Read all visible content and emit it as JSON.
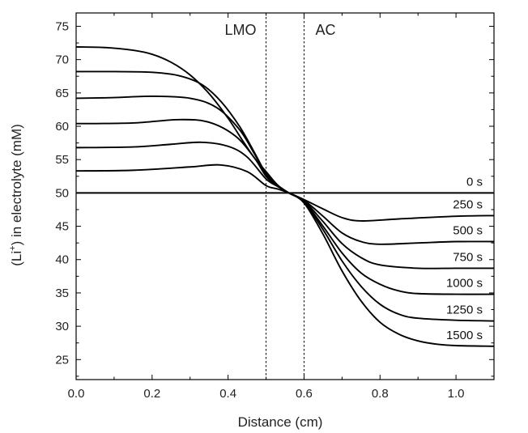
{
  "chart_data": {
    "type": "line",
    "title": "",
    "xlabel": "Distance (cm)",
    "ylabel_prefix": "(Li",
    "ylabel_sup": "+",
    "ylabel_suffix": ") in electrolyte (mM)",
    "xlim": [
      0.0,
      1.1
    ],
    "ylim": [
      22,
      77
    ],
    "xticks": [
      "0.0",
      "0.2",
      "0.4",
      "0.6",
      "0.8",
      "1.0"
    ],
    "yticks": [
      "25",
      "30",
      "35",
      "40",
      "45",
      "50",
      "55",
      "60",
      "65",
      "70",
      "75"
    ],
    "grid": false,
    "regions": [
      {
        "label": "LMO",
        "boundary_x": 0.5
      },
      {
        "label": "AC",
        "boundary_x": 0.6
      }
    ],
    "series": [
      {
        "name": "0 s",
        "x": [
          0.0,
          1.1
        ],
        "y": [
          50.0,
          50.0
        ]
      },
      {
        "name": "250 s",
        "x": [
          0.0,
          0.15,
          0.3,
          0.38,
          0.45,
          0.5,
          0.53,
          0.56,
          0.6,
          0.65,
          0.7,
          0.75,
          0.85,
          1.0,
          1.1
        ],
        "y": [
          53.3,
          53.4,
          53.9,
          54.2,
          53.2,
          51.1,
          50.6,
          50.0,
          49.0,
          47.6,
          46.3,
          45.8,
          46.1,
          46.5,
          46.6
        ]
      },
      {
        "name": "500 s",
        "x": [
          0.0,
          0.15,
          0.25,
          0.33,
          0.4,
          0.45,
          0.5,
          0.53,
          0.56,
          0.6,
          0.65,
          0.7,
          0.75,
          0.8,
          0.9,
          1.0,
          1.1
        ],
        "y": [
          56.8,
          56.9,
          57.3,
          57.6,
          57.0,
          55.4,
          52.1,
          51.0,
          50.0,
          48.9,
          46.5,
          44.0,
          42.7,
          42.3,
          42.5,
          42.7,
          42.7
        ]
      },
      {
        "name": "750 s",
        "x": [
          0.0,
          0.15,
          0.27,
          0.35,
          0.42,
          0.47,
          0.5,
          0.53,
          0.56,
          0.6,
          0.65,
          0.7,
          0.75,
          0.8,
          0.9,
          1.0,
          1.1
        ],
        "y": [
          60.4,
          60.5,
          61.0,
          60.6,
          58.5,
          55.2,
          52.5,
          51.0,
          50.0,
          48.8,
          45.7,
          42.4,
          40.3,
          39.2,
          38.7,
          38.7,
          38.7
        ]
      },
      {
        "name": "1000 s",
        "x": [
          0.0,
          0.1,
          0.2,
          0.3,
          0.37,
          0.43,
          0.47,
          0.5,
          0.53,
          0.56,
          0.6,
          0.65,
          0.7,
          0.75,
          0.8,
          0.85,
          0.9,
          1.0,
          1.1
        ],
        "y": [
          64.2,
          64.3,
          64.5,
          64.2,
          62.8,
          59.5,
          55.8,
          52.8,
          51.1,
          50.0,
          48.7,
          45.0,
          41.0,
          38.0,
          36.3,
          35.3,
          34.9,
          34.8,
          34.8
        ]
      },
      {
        "name": "1250 s",
        "x": [
          0.0,
          0.1,
          0.2,
          0.27,
          0.33,
          0.38,
          0.43,
          0.47,
          0.5,
          0.53,
          0.56,
          0.6,
          0.65,
          0.7,
          0.75,
          0.8,
          0.85,
          0.9,
          1.0,
          1.1
        ],
        "y": [
          68.2,
          68.2,
          68.1,
          67.6,
          66.3,
          63.8,
          60.0,
          56.0,
          52.9,
          51.1,
          50.0,
          48.6,
          44.5,
          39.8,
          36.0,
          33.3,
          31.8,
          31.2,
          30.9,
          30.8
        ]
      },
      {
        "name": "1500 s",
        "x": [
          0.0,
          0.08,
          0.15,
          0.2,
          0.25,
          0.3,
          0.35,
          0.4,
          0.44,
          0.47,
          0.5,
          0.53,
          0.56,
          0.6,
          0.65,
          0.7,
          0.75,
          0.8,
          0.85,
          0.9,
          0.95,
          1.0,
          1.1
        ],
        "y": [
          71.9,
          71.8,
          71.4,
          70.8,
          69.6,
          67.7,
          64.9,
          61.2,
          57.7,
          55.2,
          53.2,
          51.2,
          50.0,
          48.5,
          43.8,
          38.3,
          33.8,
          30.6,
          28.8,
          27.8,
          27.3,
          27.1,
          27.0
        ]
      }
    ]
  }
}
